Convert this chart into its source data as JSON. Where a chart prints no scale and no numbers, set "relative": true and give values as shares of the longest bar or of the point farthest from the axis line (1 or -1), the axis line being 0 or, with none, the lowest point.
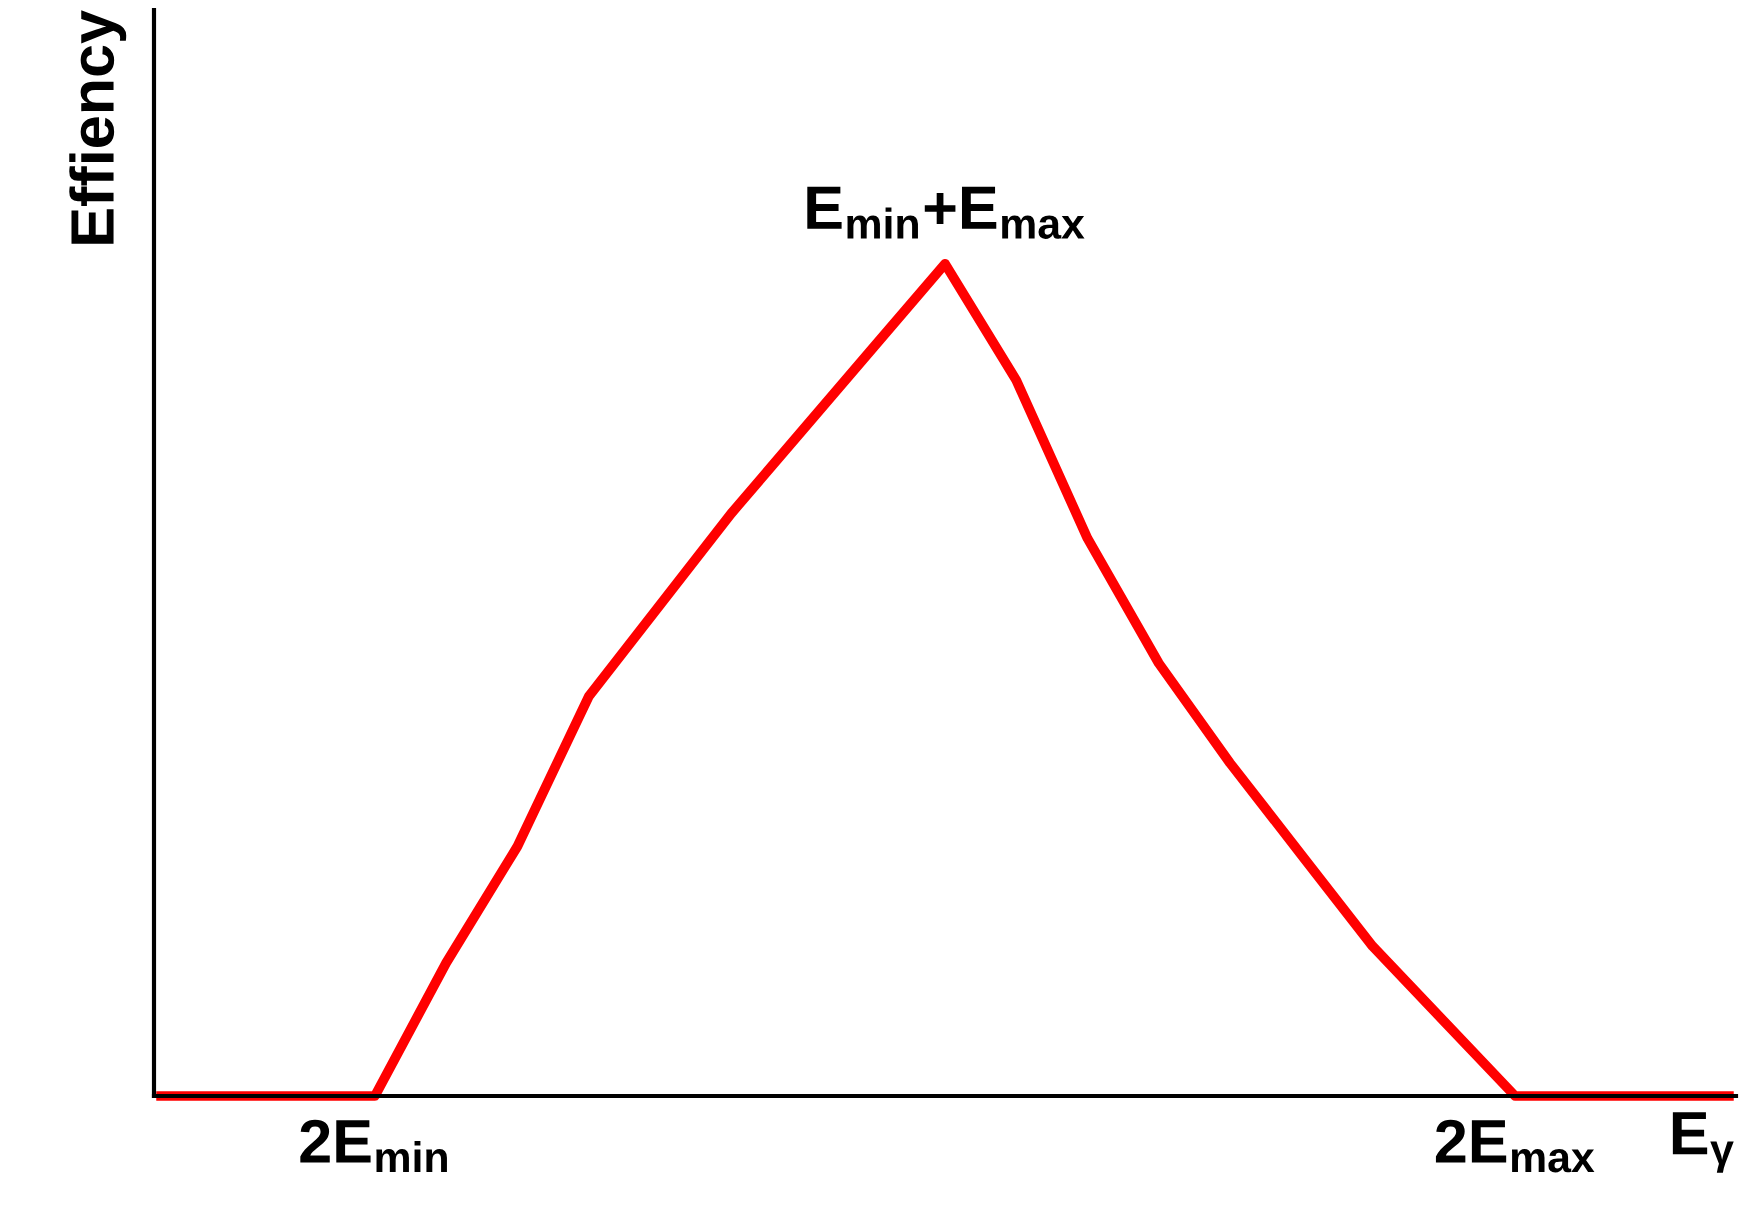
{
  "chart_data": {
    "type": "line",
    "relative": true,
    "ylabel": "Effiency",
    "xlabel": "E$_{γ}$",
    "categories": [
      null,
      null,
      null,
      "2E$_{min}$",
      null,
      null,
      null,
      null,
      null,
      null,
      null,
      null,
      null,
      null,
      null,
      null,
      null,
      null,
      null,
      "2E$_{max}$",
      null,
      null,
      null
    ],
    "series": [
      {
        "color": "#ff0000",
        "values": [
          0,
          0,
          0,
          0,
          0.16,
          0.3,
          0.48,
          0.59,
          0.7,
          0.8,
          0.9,
          1,
          0.86,
          0.67,
          0.52,
          0.4,
          0.29,
          0.18,
          0.09,
          0,
          0,
          0,
          0
        ]
      }
    ],
    "annotations": [
      {
        "text": "E$_{min}$+E$_{max}$",
        "y": 1
      }
    ],
    "tick_labels": "x",
    "grid": false,
    "legend": false,
    "marker": "none",
    "line_style": "solid"
  }
}
